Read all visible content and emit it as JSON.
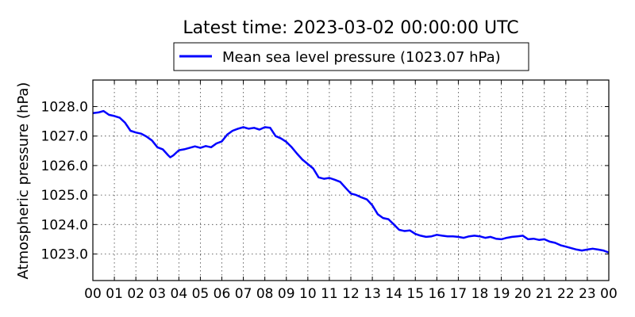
{
  "chart_data": {
    "type": "line",
    "title": "Latest time: 2023-03-02 00:00:00 UTC",
    "ylabel": "Atmospheric pressure (hPa)",
    "xlabel": "",
    "xlim": [
      0,
      24
    ],
    "ylim": [
      1022.1,
      1028.9
    ],
    "grid": true,
    "legend_position": "top-center",
    "x_tick_labels": [
      "00",
      "01",
      "02",
      "03",
      "04",
      "05",
      "06",
      "07",
      "08",
      "09",
      "10",
      "11",
      "12",
      "13",
      "14",
      "15",
      "16",
      "17",
      "18",
      "19",
      "20",
      "21",
      "22",
      "23",
      "00"
    ],
    "y_tick_labels": [
      "1023.0",
      "1024.0",
      "1025.0",
      "1026.0",
      "1027.0",
      "1028.0"
    ],
    "y_ticks": [
      1023.0,
      1024.0,
      1025.0,
      1026.0,
      1027.0,
      1028.0
    ],
    "series": [
      {
        "name": "Mean sea level pressure (1023.07 hPa)",
        "color": "#0000ff",
        "x": [
          0.0,
          0.25,
          0.5,
          0.75,
          1.0,
          1.25,
          1.5,
          1.75,
          2.0,
          2.25,
          2.5,
          2.75,
          3.0,
          3.25,
          3.5,
          3.6,
          3.75,
          4.0,
          4.25,
          4.5,
          4.75,
          5.0,
          5.25,
          5.5,
          5.75,
          6.0,
          6.25,
          6.5,
          6.75,
          7.0,
          7.25,
          7.5,
          7.75,
          8.0,
          8.25,
          8.5,
          8.75,
          9.0,
          9.25,
          9.5,
          9.75,
          10.0,
          10.25,
          10.5,
          10.75,
          11.0,
          11.25,
          11.5,
          11.75,
          12.0,
          12.25,
          12.5,
          12.75,
          13.0,
          13.25,
          13.5,
          13.75,
          14.0,
          14.25,
          14.5,
          14.75,
          15.0,
          15.25,
          15.5,
          15.75,
          16.0,
          16.25,
          16.5,
          16.75,
          17.0,
          17.25,
          17.5,
          17.75,
          18.0,
          18.25,
          18.5,
          18.75,
          19.0,
          19.25,
          19.5,
          19.75,
          20.0,
          20.25,
          20.5,
          20.75,
          21.0,
          21.25,
          21.5,
          21.75,
          22.0,
          22.25,
          22.5,
          22.75,
          23.0,
          23.25,
          23.5,
          23.75,
          24.0
        ],
        "y": [
          1027.78,
          1027.8,
          1027.85,
          1027.72,
          1027.68,
          1027.62,
          1027.45,
          1027.18,
          1027.12,
          1027.08,
          1026.98,
          1026.85,
          1026.62,
          1026.55,
          1026.35,
          1026.28,
          1026.35,
          1026.52,
          1026.55,
          1026.6,
          1026.65,
          1026.6,
          1026.66,
          1026.62,
          1026.75,
          1026.82,
          1027.05,
          1027.18,
          1027.25,
          1027.3,
          1027.25,
          1027.28,
          1027.22,
          1027.3,
          1027.28,
          1027.0,
          1026.92,
          1026.8,
          1026.62,
          1026.4,
          1026.2,
          1026.05,
          1025.9,
          1025.6,
          1025.55,
          1025.58,
          1025.52,
          1025.45,
          1025.25,
          1025.05,
          1025.0,
          1024.92,
          1024.85,
          1024.65,
          1024.35,
          1024.22,
          1024.18,
          1024.0,
          1023.82,
          1023.78,
          1023.8,
          1023.68,
          1023.62,
          1023.58,
          1023.6,
          1023.65,
          1023.62,
          1023.6,
          1023.6,
          1023.58,
          1023.55,
          1023.6,
          1023.62,
          1023.6,
          1023.55,
          1023.58,
          1023.52,
          1023.5,
          1023.55,
          1023.58,
          1023.6,
          1023.62,
          1023.5,
          1023.52,
          1023.48,
          1023.5,
          1023.42,
          1023.38,
          1023.3,
          1023.25,
          1023.2,
          1023.15,
          1023.12,
          1023.15,
          1023.18,
          1023.15,
          1023.12,
          1023.05
        ]
      }
    ]
  }
}
